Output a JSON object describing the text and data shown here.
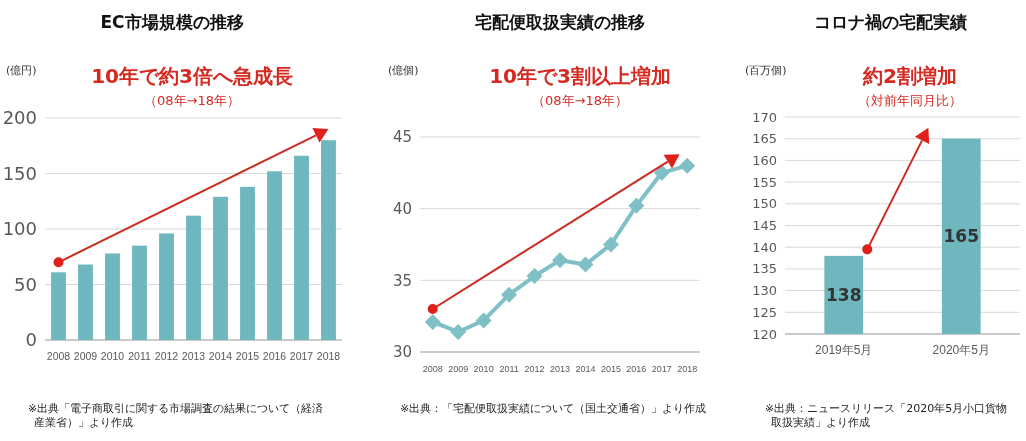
{
  "chart_data": [
    {
      "type": "bar",
      "title": "EC市場規模の推移",
      "subtitle": "10年で約3倍へ急成長",
      "ylabel": "(億円)",
      "categories": [
        "2008",
        "2009",
        "2010",
        "2011",
        "2012",
        "2013",
        "2014",
        "2015",
        "2016",
        "2017",
        "2018"
      ],
      "values": [
        61,
        68,
        78,
        85,
        96,
        112,
        129,
        138,
        152,
        166,
        180
      ],
      "color": "#6fb7bf",
      "ylim": [
        0,
        200
      ],
      "yticks": [
        0,
        50,
        100,
        150,
        200
      ],
      "grid": "y",
      "annotations": [
        "（08年→18年）",
        "※出典「電子商取引に関する市場調査の結果について（経済産業省）」より作成"
      ]
    },
    {
      "type": "line",
      "title": "宅配便取扱実績の推移",
      "subtitle": "10年で3割以上増加",
      "ylabel": "(億個)",
      "categories": [
        "2008",
        "2009",
        "2010",
        "2011",
        "2012",
        "2013",
        "2014",
        "2015",
        "2016",
        "2017",
        "2018"
      ],
      "values": [
        32.1,
        31.4,
        32.2,
        34.0,
        35.3,
        36.4,
        36.1,
        37.5,
        40.2,
        42.5,
        43.0
      ],
      "color": "#7ec0c6",
      "marker": "diamond",
      "ylim": [
        30,
        45
      ],
      "yticks": [
        30,
        35,
        40,
        45
      ],
      "grid": "y",
      "annotations": [
        "（08年→18年）",
        "※出典：「宅配便取扱実績について（国土交通省）」より作成"
      ]
    },
    {
      "type": "bar",
      "title": "コロナ禍の宅配実績",
      "subtitle": "約2割増加",
      "ylabel": "(百万個)",
      "categories": [
        "2019年5月",
        "2020年5月"
      ],
      "values": [
        138,
        165
      ],
      "color": "#6fb7bf",
      "data_labels": true,
      "ylim": [
        120,
        170
      ],
      "yticks": [
        120,
        125,
        130,
        135,
        140,
        145,
        150,
        155,
        160,
        165,
        170
      ],
      "grid": "y",
      "annotations": [
        "（対前年同月比）",
        "※出典：ニュースリリース「2020年5月小口貨物取扱実績」より作成"
      ]
    }
  ]
}
